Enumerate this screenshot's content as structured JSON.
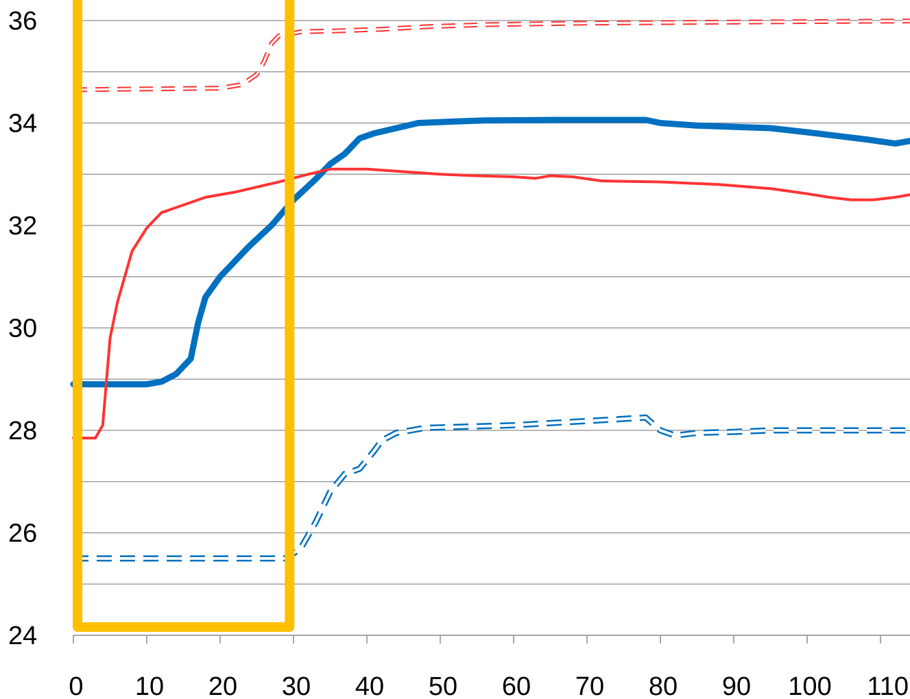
{
  "chart_data": {
    "type": "line",
    "title": "",
    "xlabel": "",
    "ylabel": "",
    "xlim": [
      0,
      114
    ],
    "ylim": [
      24,
      36
    ],
    "x_ticks": [
      "0",
      "10",
      "20",
      "30",
      "40",
      "50",
      "60",
      "70",
      "80",
      "90",
      "100",
      "110"
    ],
    "y_ticks": [
      "24",
      "26",
      "28",
      "30",
      "32",
      "34",
      "36"
    ],
    "grid": "horizontal",
    "legend": "none",
    "highlight_box": {
      "x_range": [
        0,
        29
      ],
      "y_range": [
        24.2,
        36
      ],
      "color": "#ffc000"
    },
    "series": [
      {
        "style": "solid-thick",
        "color": "#0070c0",
        "points": [
          [
            0,
            28.9
          ],
          [
            10,
            28.9
          ],
          [
            12,
            28.95
          ],
          [
            14,
            29.1
          ],
          [
            16,
            29.4
          ],
          [
            17,
            30.1
          ],
          [
            18,
            30.6
          ],
          [
            20,
            31.0
          ],
          [
            24,
            31.6
          ],
          [
            27,
            32.0
          ],
          [
            30,
            32.5
          ],
          [
            33,
            32.9
          ],
          [
            35,
            33.2
          ],
          [
            37,
            33.4
          ],
          [
            39,
            33.7
          ],
          [
            41,
            33.8
          ],
          [
            44,
            33.9
          ],
          [
            47,
            34.0
          ],
          [
            52,
            34.03
          ],
          [
            56,
            34.05
          ],
          [
            66,
            34.06
          ],
          [
            78,
            34.06
          ],
          [
            80,
            34.0
          ],
          [
            85,
            33.95
          ],
          [
            95,
            33.9
          ],
          [
            100,
            33.82
          ],
          [
            104,
            33.75
          ],
          [
            108,
            33.68
          ],
          [
            112,
            33.6
          ],
          [
            114,
            33.65
          ]
        ]
      },
      {
        "style": "solid-thin",
        "color": "#ff3333",
        "points": [
          [
            0,
            27.85
          ],
          [
            3,
            27.85
          ],
          [
            4,
            28.1
          ],
          [
            5,
            29.8
          ],
          [
            6,
            30.5
          ],
          [
            7,
            31.0
          ],
          [
            8,
            31.5
          ],
          [
            10,
            31.95
          ],
          [
            12,
            32.25
          ],
          [
            15,
            32.4
          ],
          [
            18,
            32.55
          ],
          [
            22,
            32.65
          ],
          [
            25,
            32.75
          ],
          [
            28,
            32.85
          ],
          [
            32,
            33.0
          ],
          [
            35,
            33.1
          ],
          [
            40,
            33.1
          ],
          [
            45,
            33.05
          ],
          [
            50,
            33.0
          ],
          [
            55,
            32.97
          ],
          [
            60,
            32.95
          ],
          [
            63,
            32.92
          ],
          [
            65,
            32.97
          ],
          [
            68,
            32.95
          ],
          [
            72,
            32.87
          ],
          [
            80,
            32.85
          ],
          [
            88,
            32.8
          ],
          [
            95,
            32.72
          ],
          [
            100,
            32.62
          ],
          [
            103,
            32.55
          ],
          [
            106,
            32.5
          ],
          [
            109,
            32.5
          ],
          [
            112,
            32.55
          ],
          [
            114,
            32.6
          ]
        ]
      },
      {
        "style": "dashed-thin",
        "color": "#ff3333",
        "points": [
          [
            0,
            34.65
          ],
          [
            20,
            34.68
          ],
          [
            23,
            34.75
          ],
          [
            25,
            34.95
          ],
          [
            26,
            35.2
          ],
          [
            27,
            35.55
          ],
          [
            28,
            35.7
          ],
          [
            31,
            35.78
          ],
          [
            36,
            35.8
          ],
          [
            42,
            35.83
          ],
          [
            48,
            35.88
          ],
          [
            56,
            35.92
          ],
          [
            70,
            35.95
          ],
          [
            80,
            35.96
          ],
          [
            100,
            35.98
          ],
          [
            114,
            35.99
          ]
        ]
      },
      {
        "style": "dashed-thick",
        "color": "#0070c0",
        "points": [
          [
            0,
            25.5
          ],
          [
            29,
            25.5
          ],
          [
            31,
            25.7
          ],
          [
            33,
            26.2
          ],
          [
            35,
            26.8
          ],
          [
            37,
            27.15
          ],
          [
            39,
            27.25
          ],
          [
            41,
            27.6
          ],
          [
            42,
            27.8
          ],
          [
            44,
            27.95
          ],
          [
            48,
            28.05
          ],
          [
            60,
            28.1
          ],
          [
            66,
            28.15
          ],
          [
            72,
            28.2
          ],
          [
            78,
            28.25
          ],
          [
            80,
            28.0
          ],
          [
            82,
            27.9
          ],
          [
            85,
            27.95
          ],
          [
            90,
            27.97
          ],
          [
            95,
            28.0
          ],
          [
            114,
            28.0
          ]
        ]
      }
    ]
  }
}
